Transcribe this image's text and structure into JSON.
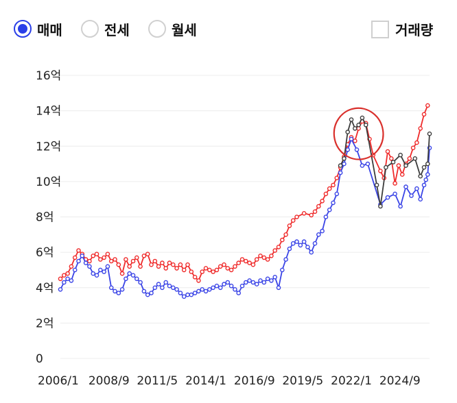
{
  "controls": {
    "radios": [
      {
        "label": "매매",
        "selected": true
      },
      {
        "label": "전세",
        "selected": false
      },
      {
        "label": "월세",
        "selected": false
      }
    ],
    "volume_checkbox": {
      "label": "거래량",
      "checked": false
    }
  },
  "colors": {
    "accent": "#2a3fe8",
    "red_series": "#ef2a2a",
    "blue_series": "#3a44e6",
    "black_series": "#3c3c3c",
    "annotation": "#d9302c",
    "grid": "#ececec"
  },
  "chart_data": {
    "type": "line",
    "y_ticks": [
      {
        "value": 0,
        "label": "0"
      },
      {
        "value": 2,
        "label": "2억"
      },
      {
        "value": 4,
        "label": "4억"
      },
      {
        "value": 6,
        "label": "6억"
      },
      {
        "value": 8,
        "label": "8억"
      },
      {
        "value": 10,
        "label": "10억"
      },
      {
        "value": 12,
        "label": "12억"
      },
      {
        "value": 14,
        "label": "14억"
      },
      {
        "value": 16,
        "label": "16억"
      }
    ],
    "x_ticks": [
      {
        "value": 2006.0,
        "label": "2006/1"
      },
      {
        "value": 2008.67,
        "label": "2008/9"
      },
      {
        "value": 2011.33,
        "label": "2011/5"
      },
      {
        "value": 2014.0,
        "label": "2014/1"
      },
      {
        "value": 2016.67,
        "label": "2016/9"
      },
      {
        "value": 2019.33,
        "label": "2019/5"
      },
      {
        "value": 2022.0,
        "label": "2022/1"
      },
      {
        "value": 2024.67,
        "label": "2024/9"
      }
    ],
    "xlim": [
      2006.0,
      2026.3
    ],
    "ylim": [
      0,
      16
    ],
    "grid": true,
    "series": [
      {
        "color_key": "red_series",
        "points": [
          [
            2006.0,
            4.5
          ],
          [
            2006.2,
            4.7
          ],
          [
            2006.4,
            4.8
          ],
          [
            2006.6,
            5.2
          ],
          [
            2006.8,
            5.7
          ],
          [
            2007.0,
            6.1
          ],
          [
            2007.2,
            5.9
          ],
          [
            2007.4,
            5.6
          ],
          [
            2007.6,
            5.5
          ],
          [
            2007.8,
            5.8
          ],
          [
            2008.0,
            5.9
          ],
          [
            2008.2,
            5.6
          ],
          [
            2008.4,
            5.7
          ],
          [
            2008.6,
            5.9
          ],
          [
            2008.8,
            5.5
          ],
          [
            2009.0,
            5.6
          ],
          [
            2009.2,
            5.3
          ],
          [
            2009.4,
            4.8
          ],
          [
            2009.6,
            5.6
          ],
          [
            2009.8,
            5.2
          ],
          [
            2010.0,
            5.5
          ],
          [
            2010.2,
            5.7
          ],
          [
            2010.4,
            5.2
          ],
          [
            2010.6,
            5.8
          ],
          [
            2010.8,
            5.9
          ],
          [
            2011.0,
            5.3
          ],
          [
            2011.2,
            5.5
          ],
          [
            2011.4,
            5.2
          ],
          [
            2011.6,
            5.4
          ],
          [
            2011.8,
            5.1
          ],
          [
            2012.0,
            5.4
          ],
          [
            2012.2,
            5.3
          ],
          [
            2012.4,
            5.1
          ],
          [
            2012.6,
            5.3
          ],
          [
            2012.8,
            5.0
          ],
          [
            2013.0,
            5.3
          ],
          [
            2013.2,
            4.9
          ],
          [
            2013.4,
            4.6
          ],
          [
            2013.6,
            4.4
          ],
          [
            2013.8,
            4.9
          ],
          [
            2014.0,
            5.1
          ],
          [
            2014.2,
            5.0
          ],
          [
            2014.4,
            4.9
          ],
          [
            2014.6,
            5.0
          ],
          [
            2014.8,
            5.2
          ],
          [
            2015.0,
            5.3
          ],
          [
            2015.2,
            5.1
          ],
          [
            2015.4,
            5.0
          ],
          [
            2015.6,
            5.2
          ],
          [
            2015.8,
            5.4
          ],
          [
            2016.0,
            5.6
          ],
          [
            2016.2,
            5.5
          ],
          [
            2016.4,
            5.4
          ],
          [
            2016.6,
            5.3
          ],
          [
            2016.8,
            5.6
          ],
          [
            2017.0,
            5.8
          ],
          [
            2017.2,
            5.7
          ],
          [
            2017.4,
            5.6
          ],
          [
            2017.6,
            5.8
          ],
          [
            2017.8,
            6.1
          ],
          [
            2018.0,
            6.3
          ],
          [
            2018.2,
            6.7
          ],
          [
            2018.4,
            7.0
          ],
          [
            2018.6,
            7.5
          ],
          [
            2018.8,
            7.8
          ],
          [
            2019.0,
            8.0
          ],
          [
            2019.4,
            8.2
          ],
          [
            2019.8,
            8.1
          ],
          [
            2020.0,
            8.3
          ],
          [
            2020.2,
            8.6
          ],
          [
            2020.4,
            8.9
          ],
          [
            2020.6,
            9.3
          ],
          [
            2020.8,
            9.6
          ],
          [
            2021.0,
            9.8
          ],
          [
            2021.2,
            10.2
          ],
          [
            2021.4,
            10.8
          ],
          [
            2021.6,
            11.4
          ],
          [
            2021.8,
            12.1
          ],
          [
            2022.0,
            12.5
          ],
          [
            2022.2,
            12.3
          ],
          [
            2022.4,
            13.0
          ],
          [
            2022.6,
            13.4
          ],
          [
            2022.8,
            13.3
          ],
          [
            2023.0,
            12.4
          ],
          [
            2023.2,
            11.5
          ],
          [
            2023.6,
            10.6
          ],
          [
            2023.8,
            10.2
          ],
          [
            2024.0,
            11.7
          ],
          [
            2024.2,
            11.3
          ],
          [
            2024.4,
            9.9
          ],
          [
            2024.6,
            10.9
          ],
          [
            2024.8,
            10.4
          ],
          [
            2025.0,
            11.0
          ],
          [
            2025.2,
            11.3
          ],
          [
            2025.4,
            11.9
          ],
          [
            2025.6,
            12.2
          ],
          [
            2025.8,
            13.0
          ],
          [
            2026.0,
            13.8
          ],
          [
            2026.2,
            14.3
          ]
        ]
      },
      {
        "color_key": "blue_series",
        "points": [
          [
            2006.0,
            3.9
          ],
          [
            2006.2,
            4.3
          ],
          [
            2006.4,
            4.5
          ],
          [
            2006.6,
            4.4
          ],
          [
            2006.8,
            5.0
          ],
          [
            2007.0,
            5.5
          ],
          [
            2007.2,
            5.8
          ],
          [
            2007.4,
            5.4
          ],
          [
            2007.6,
            5.2
          ],
          [
            2007.8,
            4.8
          ],
          [
            2008.0,
            4.7
          ],
          [
            2008.2,
            5.0
          ],
          [
            2008.4,
            4.9
          ],
          [
            2008.6,
            5.2
          ],
          [
            2008.8,
            4.0
          ],
          [
            2009.0,
            3.8
          ],
          [
            2009.2,
            3.7
          ],
          [
            2009.4,
            3.9
          ],
          [
            2009.6,
            4.5
          ],
          [
            2009.8,
            4.8
          ],
          [
            2010.0,
            4.7
          ],
          [
            2010.2,
            4.5
          ],
          [
            2010.4,
            4.3
          ],
          [
            2010.6,
            3.8
          ],
          [
            2010.8,
            3.6
          ],
          [
            2011.0,
            3.7
          ],
          [
            2011.2,
            4.0
          ],
          [
            2011.4,
            4.2
          ],
          [
            2011.6,
            4.0
          ],
          [
            2011.8,
            4.3
          ],
          [
            2012.0,
            4.1
          ],
          [
            2012.2,
            4.0
          ],
          [
            2012.4,
            3.9
          ],
          [
            2012.6,
            3.7
          ],
          [
            2012.8,
            3.5
          ],
          [
            2013.0,
            3.6
          ],
          [
            2013.2,
            3.6
          ],
          [
            2013.4,
            3.7
          ],
          [
            2013.6,
            3.8
          ],
          [
            2013.8,
            3.9
          ],
          [
            2014.0,
            3.8
          ],
          [
            2014.2,
            3.9
          ],
          [
            2014.4,
            4.0
          ],
          [
            2014.6,
            4.1
          ],
          [
            2014.8,
            4.0
          ],
          [
            2015.0,
            4.2
          ],
          [
            2015.2,
            4.3
          ],
          [
            2015.4,
            4.1
          ],
          [
            2015.6,
            3.9
          ],
          [
            2015.8,
            3.7
          ],
          [
            2016.0,
            4.1
          ],
          [
            2016.2,
            4.3
          ],
          [
            2016.4,
            4.4
          ],
          [
            2016.6,
            4.3
          ],
          [
            2016.8,
            4.2
          ],
          [
            2017.0,
            4.4
          ],
          [
            2017.2,
            4.3
          ],
          [
            2017.4,
            4.5
          ],
          [
            2017.6,
            4.4
          ],
          [
            2017.8,
            4.6
          ],
          [
            2018.0,
            4.0
          ],
          [
            2018.2,
            5.0
          ],
          [
            2018.4,
            5.6
          ],
          [
            2018.6,
            6.2
          ],
          [
            2018.8,
            6.5
          ],
          [
            2019.0,
            6.6
          ],
          [
            2019.2,
            6.4
          ],
          [
            2019.4,
            6.6
          ],
          [
            2019.6,
            6.3
          ],
          [
            2019.8,
            6.0
          ],
          [
            2020.0,
            6.5
          ],
          [
            2020.2,
            7.0
          ],
          [
            2020.4,
            7.2
          ],
          [
            2020.6,
            8.0
          ],
          [
            2020.8,
            8.4
          ],
          [
            2021.0,
            8.8
          ],
          [
            2021.2,
            9.3
          ],
          [
            2021.4,
            10.5
          ],
          [
            2021.6,
            11.0
          ],
          [
            2021.8,
            11.8
          ],
          [
            2022.0,
            12.4
          ],
          [
            2022.3,
            11.8
          ],
          [
            2022.6,
            10.9
          ],
          [
            2022.9,
            11.0
          ],
          [
            2023.6,
            8.7
          ],
          [
            2024.0,
            9.1
          ],
          [
            2024.4,
            9.3
          ],
          [
            2024.7,
            8.6
          ],
          [
            2025.0,
            9.7
          ],
          [
            2025.3,
            9.2
          ],
          [
            2025.6,
            9.6
          ],
          [
            2025.8,
            9.0
          ],
          [
            2026.0,
            9.8
          ],
          [
            2026.1,
            10.1
          ],
          [
            2026.2,
            10.4
          ],
          [
            2026.3,
            11.9
          ]
        ]
      },
      {
        "color_key": "black_series",
        "points": [
          [
            2021.4,
            10.9
          ],
          [
            2021.6,
            11.3
          ],
          [
            2021.8,
            12.8
          ],
          [
            2022.0,
            13.5
          ],
          [
            2022.2,
            13.0
          ],
          [
            2022.4,
            13.2
          ],
          [
            2022.6,
            13.6
          ],
          [
            2022.8,
            13.2
          ],
          [
            2023.4,
            9.8
          ],
          [
            2023.6,
            8.6
          ],
          [
            2023.9,
            10.8
          ],
          [
            2024.3,
            11.1
          ],
          [
            2024.7,
            11.5
          ],
          [
            2025.0,
            10.9
          ],
          [
            2025.5,
            11.3
          ],
          [
            2025.8,
            10.3
          ],
          [
            2026.0,
            10.8
          ],
          [
            2026.2,
            11.0
          ],
          [
            2026.3,
            12.7
          ]
        ]
      }
    ],
    "annotation": {
      "type": "ellipse",
      "center": [
        2022.4,
        12.7
      ],
      "rx_years": 1.35,
      "ry_value": 1.45,
      "color_key": "annotation"
    }
  }
}
